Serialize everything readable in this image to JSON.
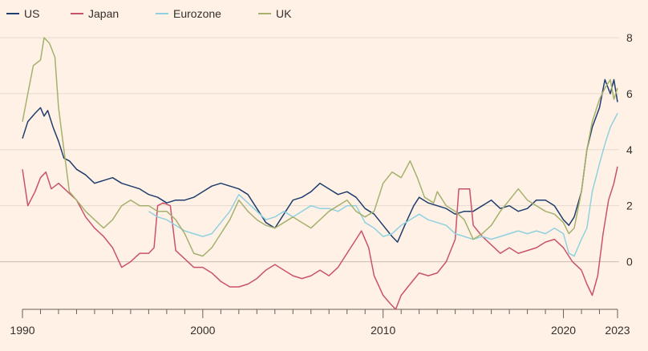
{
  "chart_data": {
    "type": "line",
    "title": "",
    "xlabel": "",
    "ylabel": "",
    "xlim": [
      1990,
      2023
    ],
    "ylim": [
      -1.7,
      8.2
    ],
    "x_ticks": [
      "1990",
      "2000",
      "2010",
      "2020",
      "2023"
    ],
    "y_ticks": [
      "0",
      "2",
      "4",
      "6",
      "8"
    ],
    "grid": true,
    "y_axis_position": "right",
    "legend": {
      "position": "top-left"
    },
    "series": [
      {
        "name": "US",
        "color": "#1f3d6e",
        "points": [
          [
            1990.0,
            4.4
          ],
          [
            1990.3,
            5.0
          ],
          [
            1990.7,
            5.3
          ],
          [
            1991.0,
            5.5
          ],
          [
            1991.2,
            5.2
          ],
          [
            1991.4,
            5.4
          ],
          [
            1991.7,
            4.8
          ],
          [
            1992.0,
            4.3
          ],
          [
            1992.3,
            3.7
          ],
          [
            1992.6,
            3.6
          ],
          [
            1993.0,
            3.3
          ],
          [
            1993.5,
            3.1
          ],
          [
            1994.0,
            2.8
          ],
          [
            1994.5,
            2.9
          ],
          [
            1995.0,
            3.0
          ],
          [
            1995.5,
            2.8
          ],
          [
            1996.0,
            2.7
          ],
          [
            1996.5,
            2.6
          ],
          [
            1997.0,
            2.4
          ],
          [
            1997.5,
            2.3
          ],
          [
            1998.0,
            2.1
          ],
          [
            1998.5,
            2.2
          ],
          [
            1999.0,
            2.2
          ],
          [
            1999.5,
            2.3
          ],
          [
            2000.0,
            2.5
          ],
          [
            2000.5,
            2.7
          ],
          [
            2001.0,
            2.8
          ],
          [
            2001.5,
            2.7
          ],
          [
            2002.0,
            2.6
          ],
          [
            2002.5,
            2.4
          ],
          [
            2003.0,
            1.9
          ],
          [
            2003.5,
            1.4
          ],
          [
            2004.0,
            1.2
          ],
          [
            2004.5,
            1.7
          ],
          [
            2005.0,
            2.2
          ],
          [
            2005.5,
            2.3
          ],
          [
            2006.0,
            2.5
          ],
          [
            2006.5,
            2.8
          ],
          [
            2007.0,
            2.6
          ],
          [
            2007.5,
            2.4
          ],
          [
            2008.0,
            2.5
          ],
          [
            2008.5,
            2.3
          ],
          [
            2009.0,
            1.9
          ],
          [
            2009.5,
            1.7
          ],
          [
            2010.0,
            1.3
          ],
          [
            2010.5,
            0.9
          ],
          [
            2010.8,
            0.7
          ],
          [
            2011.2,
            1.3
          ],
          [
            2011.7,
            2.0
          ],
          [
            2012.0,
            2.3
          ],
          [
            2012.5,
            2.1
          ],
          [
            2013.0,
            2.0
          ],
          [
            2013.5,
            1.9
          ],
          [
            2014.0,
            1.7
          ],
          [
            2014.5,
            1.8
          ],
          [
            2015.0,
            1.8
          ],
          [
            2015.5,
            2.0
          ],
          [
            2016.0,
            2.2
          ],
          [
            2016.5,
            1.9
          ],
          [
            2017.0,
            2.0
          ],
          [
            2017.5,
            1.8
          ],
          [
            2018.0,
            1.9
          ],
          [
            2018.5,
            2.2
          ],
          [
            2019.0,
            2.2
          ],
          [
            2019.5,
            2.0
          ],
          [
            2020.0,
            1.5
          ],
          [
            2020.3,
            1.3
          ],
          [
            2020.6,
            1.6
          ],
          [
            2021.0,
            2.5
          ],
          [
            2021.3,
            4.0
          ],
          [
            2021.6,
            4.8
          ],
          [
            2022.0,
            5.5
          ],
          [
            2022.3,
            6.5
          ],
          [
            2022.6,
            6.0
          ],
          [
            2022.8,
            6.5
          ],
          [
            2023.0,
            5.7
          ]
        ]
      },
      {
        "name": "Japan",
        "color": "#c9536a",
        "points": [
          [
            1990.0,
            3.3
          ],
          [
            1990.3,
            2.0
          ],
          [
            1990.7,
            2.5
          ],
          [
            1991.0,
            3.0
          ],
          [
            1991.3,
            3.2
          ],
          [
            1991.6,
            2.6
          ],
          [
            1992.0,
            2.8
          ],
          [
            1992.5,
            2.5
          ],
          [
            1993.0,
            2.2
          ],
          [
            1993.5,
            1.6
          ],
          [
            1994.0,
            1.2
          ],
          [
            1994.5,
            0.9
          ],
          [
            1995.0,
            0.5
          ],
          [
            1995.5,
            -0.2
          ],
          [
            1996.0,
            0.0
          ],
          [
            1996.5,
            0.3
          ],
          [
            1997.0,
            0.3
          ],
          [
            1997.3,
            0.5
          ],
          [
            1997.5,
            2.0
          ],
          [
            1997.8,
            2.1
          ],
          [
            1998.2,
            2.0
          ],
          [
            1998.5,
            0.4
          ],
          [
            1999.0,
            0.1
          ],
          [
            1999.5,
            -0.2
          ],
          [
            2000.0,
            -0.2
          ],
          [
            2000.5,
            -0.4
          ],
          [
            2001.0,
            -0.7
          ],
          [
            2001.5,
            -0.9
          ],
          [
            2002.0,
            -0.9
          ],
          [
            2002.5,
            -0.8
          ],
          [
            2003.0,
            -0.6
          ],
          [
            2003.5,
            -0.3
          ],
          [
            2004.0,
            -0.1
          ],
          [
            2004.5,
            -0.3
          ],
          [
            2005.0,
            -0.5
          ],
          [
            2005.5,
            -0.6
          ],
          [
            2006.0,
            -0.5
          ],
          [
            2006.5,
            -0.3
          ],
          [
            2007.0,
            -0.5
          ],
          [
            2007.5,
            -0.2
          ],
          [
            2008.0,
            0.3
          ],
          [
            2008.5,
            0.8
          ],
          [
            2008.8,
            1.1
          ],
          [
            2009.2,
            0.5
          ],
          [
            2009.5,
            -0.5
          ],
          [
            2010.0,
            -1.2
          ],
          [
            2010.4,
            -1.5
          ],
          [
            2010.7,
            -1.7
          ],
          [
            2011.0,
            -1.2
          ],
          [
            2011.5,
            -0.8
          ],
          [
            2012.0,
            -0.4
          ],
          [
            2012.5,
            -0.5
          ],
          [
            2013.0,
            -0.4
          ],
          [
            2013.5,
            0.0
          ],
          [
            2014.0,
            0.8
          ],
          [
            2014.2,
            2.6
          ],
          [
            2014.8,
            2.6
          ],
          [
            2015.0,
            1.3
          ],
          [
            2015.5,
            0.9
          ],
          [
            2016.0,
            0.6
          ],
          [
            2016.5,
            0.3
          ],
          [
            2017.0,
            0.5
          ],
          [
            2017.5,
            0.3
          ],
          [
            2018.0,
            0.4
          ],
          [
            2018.5,
            0.5
          ],
          [
            2019.0,
            0.7
          ],
          [
            2019.5,
            0.8
          ],
          [
            2020.0,
            0.5
          ],
          [
            2020.5,
            0.0
          ],
          [
            2021.0,
            -0.3
          ],
          [
            2021.3,
            -0.8
          ],
          [
            2021.6,
            -1.2
          ],
          [
            2021.9,
            -0.5
          ],
          [
            2022.2,
            1.0
          ],
          [
            2022.5,
            2.2
          ],
          [
            2022.8,
            2.8
          ],
          [
            2023.0,
            3.4
          ]
        ]
      },
      {
        "name": "Eurozone",
        "color": "#8fd1e0",
        "points": [
          [
            1997.0,
            1.8
          ],
          [
            1997.5,
            1.6
          ],
          [
            1998.0,
            1.5
          ],
          [
            1998.5,
            1.3
          ],
          [
            1999.0,
            1.1
          ],
          [
            1999.5,
            1.0
          ],
          [
            2000.0,
            0.9
          ],
          [
            2000.5,
            1.0
          ],
          [
            2001.0,
            1.4
          ],
          [
            2001.5,
            1.8
          ],
          [
            2002.0,
            2.4
          ],
          [
            2002.5,
            2.1
          ],
          [
            2003.0,
            1.8
          ],
          [
            2003.5,
            1.5
          ],
          [
            2004.0,
            1.6
          ],
          [
            2004.5,
            1.8
          ],
          [
            2005.0,
            1.6
          ],
          [
            2005.5,
            1.8
          ],
          [
            2006.0,
            2.0
          ],
          [
            2006.5,
            1.9
          ],
          [
            2007.0,
            1.9
          ],
          [
            2007.5,
            1.8
          ],
          [
            2008.0,
            2.0
          ],
          [
            2008.5,
            2.0
          ],
          [
            2009.0,
            1.4
          ],
          [
            2009.5,
            1.2
          ],
          [
            2010.0,
            0.9
          ],
          [
            2010.5,
            1.0
          ],
          [
            2011.0,
            1.3
          ],
          [
            2011.5,
            1.5
          ],
          [
            2012.0,
            1.7
          ],
          [
            2012.5,
            1.5
          ],
          [
            2013.0,
            1.4
          ],
          [
            2013.5,
            1.3
          ],
          [
            2014.0,
            1.0
          ],
          [
            2014.5,
            0.9
          ],
          [
            2015.0,
            0.8
          ],
          [
            2015.5,
            0.9
          ],
          [
            2016.0,
            0.8
          ],
          [
            2016.5,
            0.9
          ],
          [
            2017.0,
            1.0
          ],
          [
            2017.5,
            1.1
          ],
          [
            2018.0,
            1.0
          ],
          [
            2018.5,
            1.1
          ],
          [
            2019.0,
            1.0
          ],
          [
            2019.5,
            1.2
          ],
          [
            2020.0,
            1.0
          ],
          [
            2020.3,
            0.3
          ],
          [
            2020.6,
            0.2
          ],
          [
            2021.0,
            0.8
          ],
          [
            2021.3,
            1.2
          ],
          [
            2021.6,
            2.5
          ],
          [
            2022.0,
            3.5
          ],
          [
            2022.3,
            4.2
          ],
          [
            2022.6,
            4.8
          ],
          [
            2023.0,
            5.3
          ]
        ]
      },
      {
        "name": "UK",
        "color": "#a5b16d",
        "points": [
          [
            1990.0,
            5.0
          ],
          [
            1990.3,
            6.0
          ],
          [
            1990.6,
            7.0
          ],
          [
            1991.0,
            7.2
          ],
          [
            1991.2,
            8.0
          ],
          [
            1991.5,
            7.8
          ],
          [
            1991.8,
            7.3
          ],
          [
            1992.0,
            5.5
          ],
          [
            1992.3,
            4.0
          ],
          [
            1992.6,
            2.5
          ],
          [
            1993.0,
            2.2
          ],
          [
            1993.5,
            1.8
          ],
          [
            1994.0,
            1.5
          ],
          [
            1994.5,
            1.2
          ],
          [
            1995.0,
            1.5
          ],
          [
            1995.5,
            2.0
          ],
          [
            1996.0,
            2.2
          ],
          [
            1996.5,
            2.0
          ],
          [
            1997.0,
            2.0
          ],
          [
            1997.5,
            1.8
          ],
          [
            1998.0,
            1.8
          ],
          [
            1998.5,
            1.5
          ],
          [
            1999.0,
            1.0
          ],
          [
            1999.5,
            0.3
          ],
          [
            2000.0,
            0.2
          ],
          [
            2000.5,
            0.5
          ],
          [
            2001.0,
            1.0
          ],
          [
            2001.5,
            1.5
          ],
          [
            2002.0,
            2.2
          ],
          [
            2002.5,
            1.8
          ],
          [
            2003.0,
            1.5
          ],
          [
            2003.5,
            1.3
          ],
          [
            2004.0,
            1.2
          ],
          [
            2004.5,
            1.4
          ],
          [
            2005.0,
            1.6
          ],
          [
            2005.5,
            1.4
          ],
          [
            2006.0,
            1.2
          ],
          [
            2006.5,
            1.5
          ],
          [
            2007.0,
            1.8
          ],
          [
            2007.5,
            2.0
          ],
          [
            2008.0,
            2.2
          ],
          [
            2008.5,
            1.8
          ],
          [
            2009.0,
            1.6
          ],
          [
            2009.5,
            1.8
          ],
          [
            2010.0,
            2.8
          ],
          [
            2010.5,
            3.2
          ],
          [
            2011.0,
            3.0
          ],
          [
            2011.5,
            3.6
          ],
          [
            2011.9,
            3.0
          ],
          [
            2012.3,
            2.3
          ],
          [
            2012.8,
            2.1
          ],
          [
            2013.0,
            2.5
          ],
          [
            2013.5,
            2.0
          ],
          [
            2014.0,
            1.8
          ],
          [
            2014.5,
            1.5
          ],
          [
            2015.0,
            0.8
          ],
          [
            2015.5,
            1.0
          ],
          [
            2016.0,
            1.3
          ],
          [
            2016.5,
            1.8
          ],
          [
            2017.0,
            2.2
          ],
          [
            2017.5,
            2.6
          ],
          [
            2018.0,
            2.2
          ],
          [
            2018.5,
            2.0
          ],
          [
            2019.0,
            1.8
          ],
          [
            2019.5,
            1.7
          ],
          [
            2020.0,
            1.4
          ],
          [
            2020.3,
            1.0
          ],
          [
            2020.6,
            1.2
          ],
          [
            2021.0,
            2.5
          ],
          [
            2021.3,
            4.0
          ],
          [
            2021.6,
            5.0
          ],
          [
            2022.0,
            5.8
          ],
          [
            2022.3,
            6.2
          ],
          [
            2022.6,
            6.5
          ],
          [
            2022.8,
            5.8
          ],
          [
            2023.0,
            6.2
          ]
        ]
      }
    ]
  }
}
